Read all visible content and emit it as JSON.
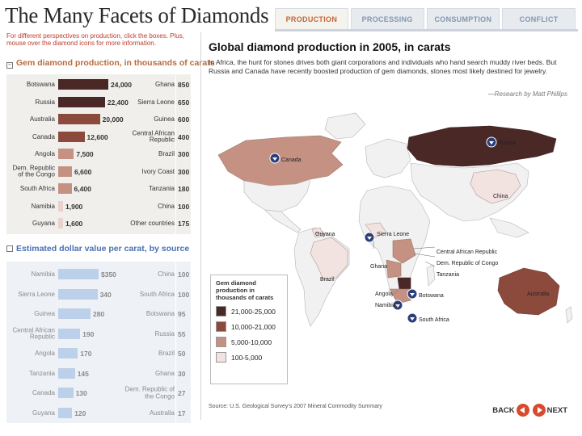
{
  "header": {
    "title": "The Many Facets of Diamonds",
    "tabs": [
      "PRODUCTION",
      "PROCESSING",
      "CONSUMPTION",
      "CONFLICT"
    ],
    "active_tab": "PRODUCTION"
  },
  "instructions": "For different perspectives on production, click the boxes. Plus, mouse over the diamond icons for more information.",
  "left": {
    "production_title": "Gem diamond production, in thousands of carats",
    "production_rows": [
      {
        "name": "Botswana",
        "value": "24,000",
        "r_name": "Ghana",
        "r_value": "850"
      },
      {
        "name": "Russia",
        "value": "22,400",
        "r_name": "Sierra Leone",
        "r_value": "650"
      },
      {
        "name": "Australia",
        "value": "20,000",
        "r_name": "Guinea",
        "r_value": "600"
      },
      {
        "name": "Canada",
        "value": "12,600",
        "r_name": "Central African Republic",
        "r_value": "400"
      },
      {
        "name": "Angola",
        "value": "7,500",
        "r_name": "Brazil",
        "r_value": "300"
      },
      {
        "name": "Dem. Republic of the Congo",
        "value": "6,600",
        "r_name": "Ivory Coast",
        "r_value": "300"
      },
      {
        "name": "South Africa",
        "value": "6,400",
        "r_name": "Tanzania",
        "r_value": "180"
      },
      {
        "name": "Namibia",
        "value": "1,900",
        "r_name": "China",
        "r_value": "100"
      },
      {
        "name": "Guyana",
        "value": "1,600",
        "r_name": "Other countries",
        "r_value": "175"
      }
    ],
    "dollar_title": "Estimated dollar value per carat, by source",
    "dollar_rows": [
      {
        "name": "Namibia",
        "value": "$350",
        "r_name": "China",
        "r_value": "100"
      },
      {
        "name": "Sierra Leone",
        "value": "340",
        "r_name": "South Africa",
        "r_value": "100"
      },
      {
        "name": "Guinea",
        "value": "280",
        "r_name": "Botswana",
        "r_value": "95"
      },
      {
        "name": "Central African Republic",
        "value": "190",
        "r_name": "Russia",
        "r_value": "55"
      },
      {
        "name": "Angola",
        "value": "170",
        "r_name": "Brazil",
        "r_value": "50"
      },
      {
        "name": "Tanzania",
        "value": "145",
        "r_name": "Ghana",
        "r_value": "30"
      },
      {
        "name": "Canada",
        "value": "130",
        "r_name": "Dem. Republic of the Congo",
        "r_value": "27"
      },
      {
        "name": "Guyana",
        "value": "120",
        "r_name": "Australia",
        "r_value": "17"
      }
    ]
  },
  "map": {
    "title": "Global diamond production in 2005, in carats",
    "description": "In Africa, the hunt for stones drives both giant corporations and individuals who hand search muddy river beds. But Russia and Canada have recently boosted production of gem diamonds, stones most likely destined for jewelry.",
    "credit": "—Research by Matt Phillips",
    "labels": {
      "russia": "Russia",
      "canada": "Canada",
      "china": "China",
      "guyana": "Guyana",
      "sierra_leone": "Sierra Leone",
      "ghana": "Ghana",
      "brazil": "Brazil",
      "car": "Central African Republic",
      "drc": "Dem. Republic of Congo",
      "tanzania": "Tanzania",
      "angola": "Angola",
      "namibia": "Namibia",
      "botswana": "Botswana",
      "south_africa": "South Africa",
      "australia": "Australia"
    },
    "legend": {
      "title": "Gem diamond production in thousands of carats",
      "items": [
        {
          "label": "21,000-25,000",
          "color": "#4a2826"
        },
        {
          "label": "10,000-21,000",
          "color": "#8c4a3c"
        },
        {
          "label": "5,000-10,000",
          "color": "#c49182"
        },
        {
          "label": "100-5,000",
          "color": "#f2e2e0"
        }
      ]
    }
  },
  "source": "Source: U.S. Geological Survey's 2007 Mineral Commodity Summary",
  "nav": {
    "back": "BACK",
    "next": "NEXT"
  }
}
